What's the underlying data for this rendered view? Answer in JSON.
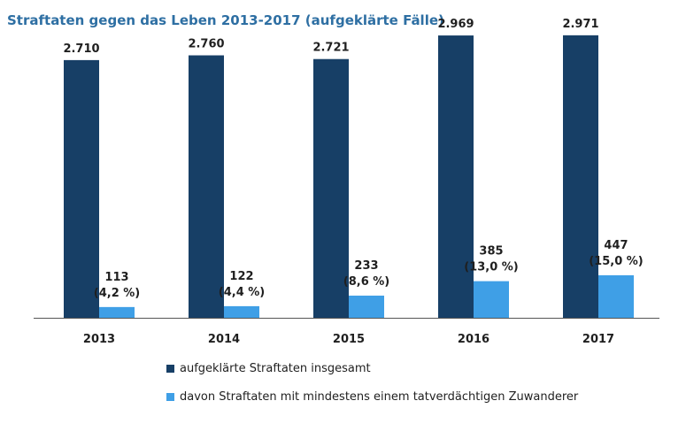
{
  "title": "Straftaten gegen das Leben 2013-2017 (aufgeklärte Fälle)",
  "colors": {
    "total": "#173f66",
    "migrant": "#3f9fe6",
    "axis": "#555555",
    "text": "#1f1f1f"
  },
  "chart_data": {
    "type": "bar",
    "title": "Straftaten gegen das Leben 2013-2017 (aufgeklärte Fälle)",
    "categories": [
      "2013",
      "2014",
      "2015",
      "2016",
      "2017"
    ],
    "series": [
      {
        "name": "aufgeklärte Straftaten insgesamt",
        "values": [
          2710,
          2760,
          2721,
          2969,
          2971
        ],
        "labels": [
          "2.710",
          "2.760",
          "2.721",
          "2.969",
          "2.971"
        ]
      },
      {
        "name": "davon Straftaten mit mindestens einem tatverdächtigen Zuwanderer",
        "values": [
          113,
          122,
          233,
          385,
          447
        ],
        "labels": [
          "113",
          "122",
          "233",
          "385",
          "447"
        ],
        "percent_labels": [
          "(4,2 %)",
          "(4,4 %)",
          "(8,6 %)",
          "(13,0 %)",
          "(15,0 %)"
        ]
      }
    ],
    "ylim": [
      0,
      3100
    ],
    "grid": false,
    "legend": "bottom"
  }
}
